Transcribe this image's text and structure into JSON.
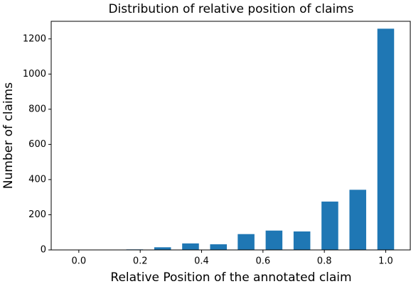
{
  "chart_data": {
    "type": "bar",
    "title": "Distribution of relative position of claims",
    "x_label": "Relative Position of the annotated claim",
    "y_label": "Number of claims",
    "x": [
      0,
      0.091,
      0.182,
      0.273,
      0.364,
      0.455,
      0.545,
      0.636,
      0.727,
      0.818,
      0.909,
      1.0
    ],
    "values": [
      0,
      0,
      3,
      15,
      37,
      32,
      90,
      110,
      105,
      275,
      342,
      1258
    ],
    "color": "#1f77b4",
    "xlim": [
      -0.09,
      1.08
    ],
    "xticks": [
      {
        "value": 0,
        "label": "0.0"
      },
      {
        "value": 0.2,
        "label": "0.2"
      },
      {
        "value": 0.4,
        "label": "0.4"
      },
      {
        "value": 0.6,
        "label": "0.6"
      },
      {
        "value": 0.8,
        "label": "0.8"
      },
      {
        "value": 1.0,
        "label": "1.0"
      }
    ],
    "ylim": [
      0,
      1300
    ],
    "yticks": [
      0,
      200,
      400,
      600,
      800,
      1000,
      1200
    ],
    "grid": false
  }
}
